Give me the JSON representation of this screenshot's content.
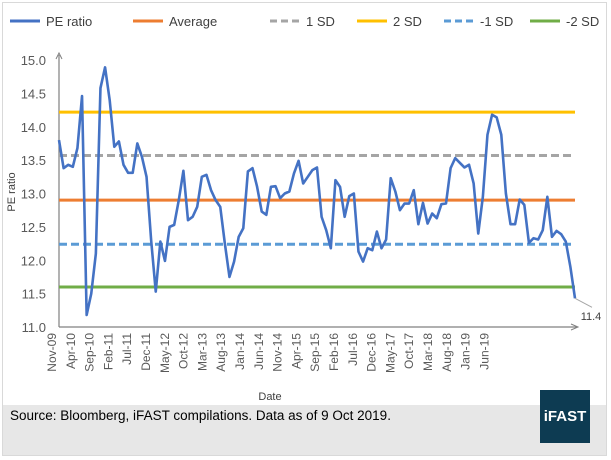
{
  "chart_data": {
    "type": "line",
    "title": "",
    "xlabel": "Date",
    "ylabel": "PE ratio",
    "ylim": [
      11.0,
      15.0
    ],
    "yticks": [
      "11.0",
      "11.5",
      "12.0",
      "12.5",
      "13.0",
      "13.5",
      "14.0",
      "14.5",
      "15.0"
    ],
    "x_tick_labels": [
      "Nov-09",
      "Apr-10",
      "Sep-10",
      "Feb-11",
      "Jul-11",
      "Dec-11",
      "May-12",
      "Oct-12",
      "Mar-13",
      "Aug-13",
      "Jan-14",
      "Jun-14",
      "Nov-14",
      "Apr-15",
      "Sep-15",
      "Feb-16",
      "Jul-16",
      "Dec-16",
      "May-17",
      "Oct-17",
      "Mar-18",
      "Aug-18",
      "Jan-19",
      "Jun-19"
    ],
    "legend_placement": "top",
    "series": [
      {
        "name": "PE ratio",
        "color": "#4472c4",
        "style": "solid",
        "values": [
          13.8,
          13.38,
          13.43,
          13.4,
          13.68,
          14.46,
          11.18,
          11.5,
          12.1,
          14.58,
          14.89,
          14.4,
          13.7,
          13.78,
          13.43,
          13.31,
          13.31,
          13.75,
          13.55,
          13.25,
          12.3,
          11.53,
          12.28,
          11.99,
          12.5,
          12.53,
          12.9,
          13.34,
          12.6,
          12.65,
          12.8,
          13.25,
          13.28,
          13.05,
          12.9,
          12.8,
          12.25,
          11.75,
          11.98,
          12.35,
          12.48,
          13.33,
          13.38,
          13.1,
          12.73,
          12.68,
          13.1,
          13.11,
          12.93,
          13.0,
          13.03,
          13.3,
          13.49,
          13.15,
          13.25,
          13.35,
          13.39,
          12.65,
          12.45,
          12.18,
          13.2,
          13.1,
          12.65,
          12.96,
          13.0,
          12.13,
          11.98,
          12.18,
          12.15,
          12.43,
          12.18,
          12.31,
          13.23,
          13.03,
          12.75,
          12.85,
          12.85,
          13.05,
          12.54,
          12.86,
          12.55,
          12.7,
          12.63,
          12.84,
          12.85,
          13.38,
          13.53,
          13.46,
          13.39,
          13.43,
          13.15,
          12.4,
          12.95,
          13.88,
          14.18,
          14.14,
          13.88,
          13.0,
          12.54,
          12.54,
          12.91,
          12.83,
          12.26,
          12.33,
          12.31,
          12.45,
          12.95,
          12.35,
          12.44,
          12.39,
          12.28,
          11.9,
          11.43
        ]
      },
      {
        "name": "Average",
        "color": "#ed7d31",
        "style": "solid",
        "value": 12.9
      },
      {
        "name": "1 SD",
        "color": "#a5a5a5",
        "style": "dashed",
        "value": 13.57
      },
      {
        "name": "2 SD",
        "color": "#ffc000",
        "style": "solid",
        "value": 14.22
      },
      {
        "name": "-1 SD",
        "color": "#5b9bd5",
        "style": "dashed",
        "value": 12.24
      },
      {
        "name": "-2 SD",
        "color": "#70ad47",
        "style": "solid",
        "value": 11.6
      }
    ],
    "annotations": [
      {
        "text": "11.4",
        "target": "last PE ratio point"
      }
    ],
    "grid": false
  },
  "footer": {
    "source": "Source: Bloomberg, iFAST compilations. Data as of 9 Oct 2019.",
    "logo": "iFAST"
  }
}
